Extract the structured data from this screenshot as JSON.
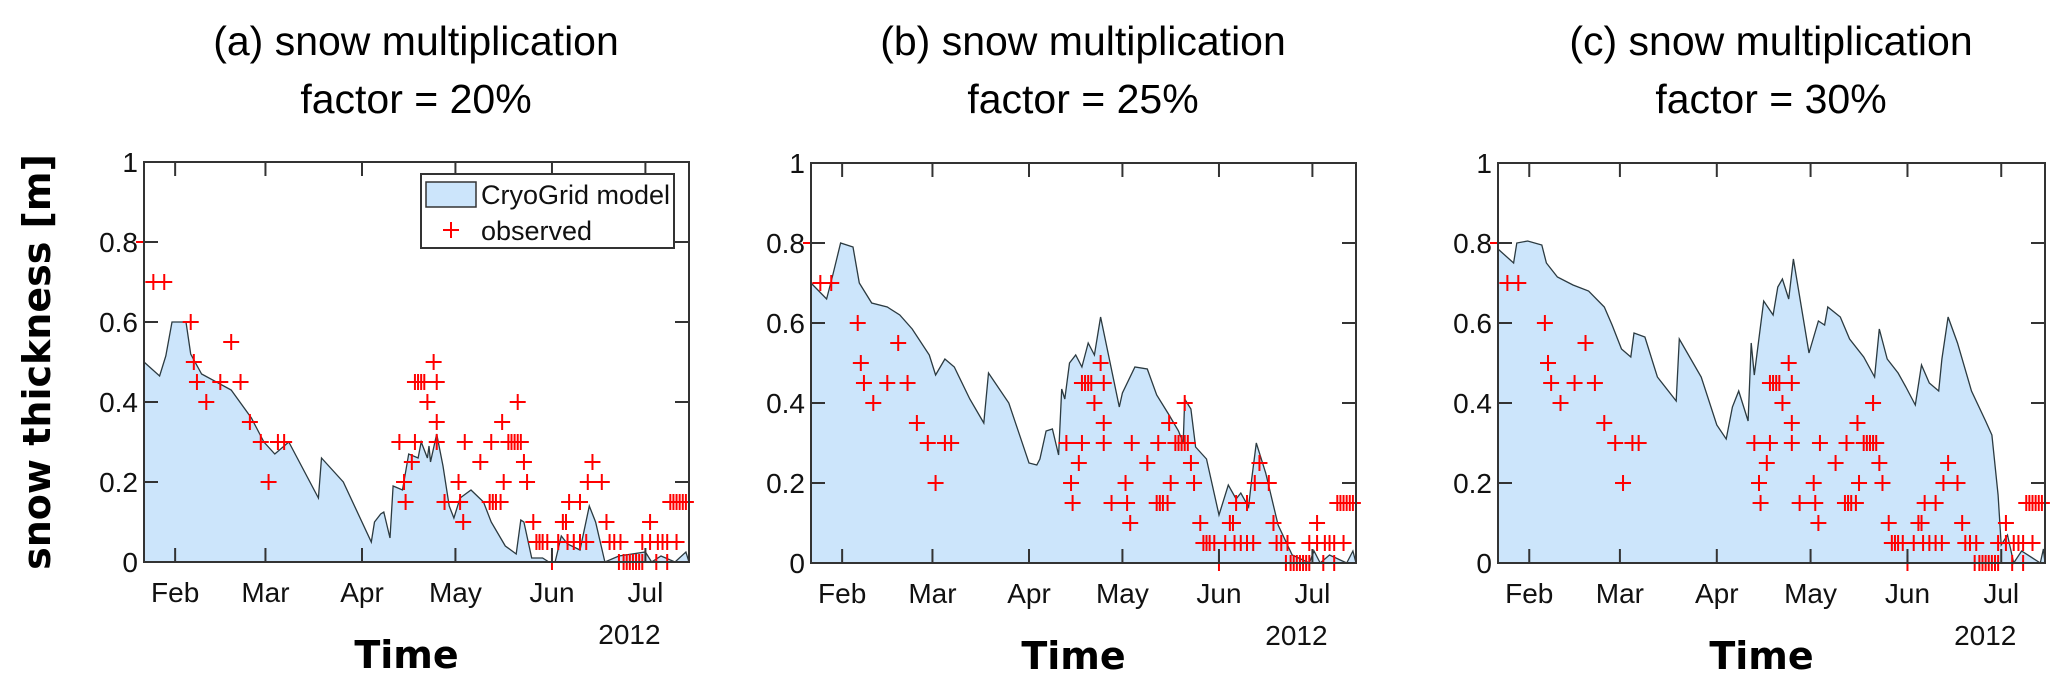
{
  "panels": [
    {
      "title_line1": "(a) snow multiplication",
      "title_line2": "factor = 20%"
    },
    {
      "title_line1": "(b) snow multiplication",
      "title_line2": "factor = 25%"
    },
    {
      "title_line1": "(c) snow multiplication",
      "title_line2": "factor = 30%"
    }
  ],
  "legend": {
    "model_label": "CryoGrid model",
    "observed_label": "observed"
  },
  "colors": {
    "fill": "#cce5fb",
    "line": "#2b3a40",
    "observed": "#ff0000",
    "axis": "#333333"
  },
  "chart_data": {
    "type": "area",
    "ylabel": "snow thickness [m]",
    "xlabel": "Time",
    "year_label": "2012",
    "x_units": "day of year 2012",
    "xlim": [
      21,
      196
    ],
    "ylim": [
      0,
      1
    ],
    "yticks": [
      0,
      0.2,
      0.4,
      0.6,
      0.8,
      1
    ],
    "ytick_labels": [
      "0",
      "0.2",
      "0.4",
      "0.6",
      "0.8",
      "1"
    ],
    "xticks": [
      31,
      60,
      91,
      121,
      152,
      182
    ],
    "xtick_labels": [
      "Feb",
      "Mar",
      "Apr",
      "May",
      "Jun",
      "Jul"
    ],
    "legend_position": "top-right (panel a only)",
    "grid": false,
    "observed": [
      [
        21,
        0.8
      ],
      [
        24,
        0.7
      ],
      [
        27.5,
        0.7
      ],
      [
        36,
        0.6
      ],
      [
        37,
        0.5
      ],
      [
        38,
        0.45
      ],
      [
        41,
        0.4
      ],
      [
        45.5,
        0.45
      ],
      [
        49,
        0.55
      ],
      [
        52,
        0.45
      ],
      [
        55,
        0.35
      ],
      [
        58.5,
        0.3
      ],
      [
        61,
        0.2
      ],
      [
        64,
        0.3
      ],
      [
        66,
        0.3
      ],
      [
        103,
        0.3
      ],
      [
        104.5,
        0.2
      ],
      [
        105,
        0.15
      ],
      [
        107,
        0.25
      ],
      [
        108,
        0.3
      ],
      [
        108,
        0.45
      ],
      [
        109,
        0.45
      ],
      [
        110,
        0.45
      ],
      [
        111,
        0.45
      ],
      [
        112,
        0.4
      ],
      [
        114,
        0.5
      ],
      [
        115,
        0.45
      ],
      [
        115,
        0.35
      ],
      [
        115,
        0.3
      ],
      [
        117.5,
        0.15
      ],
      [
        122,
        0.2
      ],
      [
        122.5,
        0.15
      ],
      [
        123.5,
        0.1
      ],
      [
        124,
        0.3
      ],
      [
        129,
        0.25
      ],
      [
        132,
        0.15
      ],
      [
        133,
        0.15
      ],
      [
        134,
        0.15
      ],
      [
        135.5,
        0.15
      ],
      [
        132.5,
        0.3
      ],
      [
        136,
        0.35
      ],
      [
        136.5,
        0.2
      ],
      [
        138,
        0.3
      ],
      [
        139,
        0.3
      ],
      [
        140,
        0.3
      ],
      [
        141,
        0.3
      ],
      [
        142,
        0.3
      ],
      [
        141,
        0.4
      ],
      [
        143,
        0.25
      ],
      [
        144,
        0.2
      ],
      [
        146,
        0.1
      ],
      [
        147,
        0.05
      ],
      [
        148,
        0.05
      ],
      [
        149,
        0.05
      ],
      [
        150.5,
        0.05
      ],
      [
        152,
        0
      ],
      [
        154,
        0.05
      ],
      [
        155.5,
        0.1
      ],
      [
        156.5,
        0.1
      ],
      [
        157,
        0.05
      ],
      [
        157.5,
        0.15
      ],
      [
        159,
        0.05
      ],
      [
        161,
        0.15
      ],
      [
        161,
        0.05
      ],
      [
        163,
        0.05
      ],
      [
        163.5,
        0.2
      ],
      [
        165,
        0.25
      ],
      [
        168,
        0.2
      ],
      [
        169.5,
        0.1
      ],
      [
        170.5,
        0.05
      ],
      [
        172,
        0.05
      ],
      [
        174,
        0.05
      ],
      [
        173.5,
        0
      ],
      [
        175,
        0
      ],
      [
        176,
        0
      ],
      [
        177,
        0
      ],
      [
        178,
        0
      ],
      [
        179,
        0
      ],
      [
        180,
        0
      ],
      [
        181,
        0
      ],
      [
        181,
        0.05
      ],
      [
        183.5,
        0.1
      ],
      [
        183.5,
        0.05
      ],
      [
        185.5,
        0
      ],
      [
        186,
        0.05
      ],
      [
        187.5,
        0.05
      ],
      [
        189,
        0
      ],
      [
        189,
        0.05
      ],
      [
        192,
        0.05
      ],
      [
        190,
        0.15
      ],
      [
        191,
        0.15
      ],
      [
        192,
        0.15
      ],
      [
        193,
        0.15
      ],
      [
        194,
        0.15
      ],
      [
        195,
        0.15
      ]
    ],
    "series": [
      {
        "name": "CryoGrid model (20%)",
        "points": [
          [
            21,
            0.5
          ],
          [
            26,
            0.465
          ],
          [
            28,
            0.515
          ],
          [
            30,
            0.6
          ],
          [
            34.5,
            0.6
          ],
          [
            36,
            0.52
          ],
          [
            39.5,
            0.47
          ],
          [
            49,
            0.43
          ],
          [
            55.5,
            0.36
          ],
          [
            59.5,
            0.3
          ],
          [
            63,
            0.27
          ],
          [
            67.5,
            0.3
          ],
          [
            77,
            0.16
          ],
          [
            78,
            0.26
          ],
          [
            85,
            0.2
          ],
          [
            94,
            0.05
          ],
          [
            95,
            0.1
          ],
          [
            97,
            0.12
          ],
          [
            98,
            0.125
          ],
          [
            100,
            0.06
          ],
          [
            101,
            0.19
          ],
          [
            104,
            0.18
          ],
          [
            106,
            0.27
          ],
          [
            109,
            0.26
          ],
          [
            110,
            0.3
          ],
          [
            112,
            0.26
          ],
          [
            112.5,
            0.29
          ],
          [
            113,
            0.25
          ],
          [
            115,
            0.32
          ],
          [
            117,
            0.24
          ],
          [
            119,
            0.14
          ],
          [
            120.5,
            0.11
          ],
          [
            122.5,
            0.16
          ],
          [
            126,
            0.18
          ],
          [
            130,
            0.15
          ],
          [
            132.5,
            0.1
          ],
          [
            137,
            0.04
          ],
          [
            140.5,
            0.02
          ],
          [
            142,
            0.105
          ],
          [
            143,
            0.1
          ],
          [
            145.5,
            0.01
          ],
          [
            149,
            0.01
          ],
          [
            151,
            0
          ],
          [
            153,
            0
          ],
          [
            155,
            0.065
          ],
          [
            157,
            0.045
          ],
          [
            161,
            0.03
          ],
          [
            164,
            0.14
          ],
          [
            166,
            0.1
          ],
          [
            169,
            0
          ],
          [
            173.5,
            0.015
          ],
          [
            182,
            0.025
          ],
          [
            184,
            0
          ],
          [
            187,
            0.015
          ],
          [
            191.5,
            0
          ],
          [
            195,
            0.025
          ],
          [
            196,
            0
          ]
        ]
      },
      {
        "name": "CryoGrid model (25%)",
        "points": [
          [
            21,
            0.7
          ],
          [
            26,
            0.66
          ],
          [
            28,
            0.72
          ],
          [
            30.5,
            0.8
          ],
          [
            34.5,
            0.79
          ],
          [
            36.5,
            0.7
          ],
          [
            40.5,
            0.65
          ],
          [
            45.5,
            0.64
          ],
          [
            49.5,
            0.62
          ],
          [
            53.5,
            0.585
          ],
          [
            59,
            0.52
          ],
          [
            61,
            0.47
          ],
          [
            64,
            0.51
          ],
          [
            67,
            0.49
          ],
          [
            72,
            0.41
          ],
          [
            76.5,
            0.35
          ],
          [
            78,
            0.475
          ],
          [
            84.5,
            0.4
          ],
          [
            91,
            0.25
          ],
          [
            93.5,
            0.245
          ],
          [
            94.5,
            0.26
          ],
          [
            96.5,
            0.33
          ],
          [
            98.5,
            0.335
          ],
          [
            100.5,
            0.27
          ],
          [
            101.5,
            0.435
          ],
          [
            102.5,
            0.41
          ],
          [
            104,
            0.5
          ],
          [
            106,
            0.52
          ],
          [
            108,
            0.49
          ],
          [
            110,
            0.55
          ],
          [
            112,
            0.52
          ],
          [
            114,
            0.615
          ],
          [
            120,
            0.39
          ],
          [
            121,
            0.425
          ],
          [
            125,
            0.49
          ],
          [
            129,
            0.485
          ],
          [
            132,
            0.42
          ],
          [
            136,
            0.37
          ],
          [
            139,
            0.33
          ],
          [
            140.5,
            0.3
          ],
          [
            141,
            0.41
          ],
          [
            143,
            0.385
          ],
          [
            144.5,
            0.29
          ],
          [
            148,
            0.26
          ],
          [
            152,
            0.12
          ],
          [
            155,
            0.195
          ],
          [
            157.5,
            0.16
          ],
          [
            159,
            0.175
          ],
          [
            161.5,
            0.14
          ],
          [
            162.5,
            0.21
          ],
          [
            164,
            0.3
          ],
          [
            167,
            0.225
          ],
          [
            171,
            0.095
          ],
          [
            175.5,
            0.02
          ],
          [
            181,
            0
          ],
          [
            182.5,
            0.03
          ],
          [
            184.5,
            0
          ],
          [
            187.5,
            0.02
          ],
          [
            193,
            0
          ],
          [
            195,
            0.03
          ],
          [
            196,
            0
          ]
        ]
      },
      {
        "name": "CryoGrid model (30%)",
        "points": [
          [
            21,
            0.785
          ],
          [
            26,
            0.75
          ],
          [
            27,
            0.8
          ],
          [
            30.5,
            0.805
          ],
          [
            35,
            0.795
          ],
          [
            36.5,
            0.75
          ],
          [
            40,
            0.715
          ],
          [
            45,
            0.695
          ],
          [
            50,
            0.68
          ],
          [
            55,
            0.64
          ],
          [
            57.5,
            0.595
          ],
          [
            60.5,
            0.535
          ],
          [
            63.5,
            0.515
          ],
          [
            64.5,
            0.575
          ],
          [
            68,
            0.565
          ],
          [
            72,
            0.465
          ],
          [
            78,
            0.405
          ],
          [
            79,
            0.56
          ],
          [
            86,
            0.465
          ],
          [
            91,
            0.345
          ],
          [
            94,
            0.31
          ],
          [
            96,
            0.39
          ],
          [
            98,
            0.43
          ],
          [
            101,
            0.355
          ],
          [
            102,
            0.55
          ],
          [
            103,
            0.47
          ],
          [
            106,
            0.655
          ],
          [
            109,
            0.62
          ],
          [
            110.5,
            0.69
          ],
          [
            112,
            0.71
          ],
          [
            114,
            0.66
          ],
          [
            115.5,
            0.76
          ],
          [
            120.5,
            0.525
          ],
          [
            123.5,
            0.605
          ],
          [
            125.5,
            0.595
          ],
          [
            126.5,
            0.64
          ],
          [
            130.5,
            0.615
          ],
          [
            133.5,
            0.56
          ],
          [
            138,
            0.515
          ],
          [
            141.5,
            0.465
          ],
          [
            143,
            0.585
          ],
          [
            145.5,
            0.51
          ],
          [
            149,
            0.475
          ],
          [
            151.5,
            0.44
          ],
          [
            154.5,
            0.395
          ],
          [
            156.5,
            0.495
          ],
          [
            159,
            0.45
          ],
          [
            162,
            0.43
          ],
          [
            163,
            0.51
          ],
          [
            165,
            0.615
          ],
          [
            168,
            0.55
          ],
          [
            172.5,
            0.43
          ],
          [
            177,
            0.355
          ],
          [
            179,
            0.32
          ],
          [
            181,
            0.17
          ],
          [
            182,
            0.045
          ],
          [
            184,
            0.07
          ],
          [
            186,
            0
          ],
          [
            188.5,
            0.03
          ],
          [
            194.5,
            0
          ],
          [
            195.5,
            0.035
          ],
          [
            196,
            0
          ]
        ]
      }
    ]
  }
}
